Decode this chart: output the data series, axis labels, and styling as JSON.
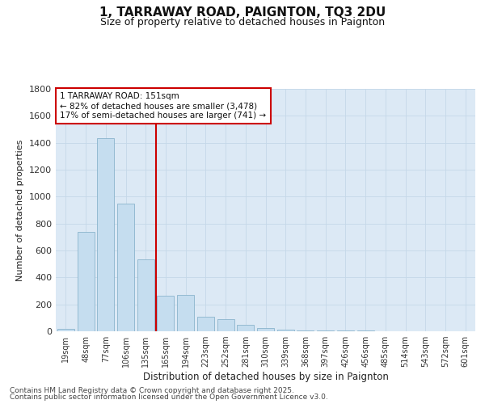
{
  "title": "1, TARRAWAY ROAD, PAIGNTON, TQ3 2DU",
  "subtitle": "Size of property relative to detached houses in Paignton",
  "xlabel": "Distribution of detached houses by size in Paignton",
  "ylabel": "Number of detached properties",
  "categories": [
    "19sqm",
    "48sqm",
    "77sqm",
    "106sqm",
    "135sqm",
    "165sqm",
    "194sqm",
    "223sqm",
    "252sqm",
    "281sqm",
    "310sqm",
    "339sqm",
    "368sqm",
    "397sqm",
    "426sqm",
    "456sqm",
    "485sqm",
    "514sqm",
    "543sqm",
    "572sqm",
    "601sqm"
  ],
  "values": [
    20,
    740,
    1435,
    950,
    535,
    265,
    270,
    110,
    90,
    50,
    25,
    15,
    5,
    5,
    5,
    5,
    3,
    3,
    2,
    2,
    1
  ],
  "bar_color": "#c5ddef",
  "bar_edge_color": "#8ab4cc",
  "vline_x": 5,
  "vline_color": "#cc0000",
  "annotation_line1": "1 TARRAWAY ROAD: 151sqm",
  "annotation_line2": "← 82% of detached houses are smaller (3,478)",
  "annotation_line3": "17% of semi-detached houses are larger (741) →",
  "annotation_box_color": "#cc0000",
  "annotation_bg_color": "#ffffff",
  "ylim": [
    0,
    1800
  ],
  "yticks": [
    0,
    200,
    400,
    600,
    800,
    1000,
    1200,
    1400,
    1600,
    1800
  ],
  "grid_color": "#c5d8e8",
  "bg_color": "#dce9f5",
  "fig_bg_color": "#ffffff",
  "footer1": "Contains HM Land Registry data © Crown copyright and database right 2025.",
  "footer2": "Contains public sector information licensed under the Open Government Licence v3.0."
}
